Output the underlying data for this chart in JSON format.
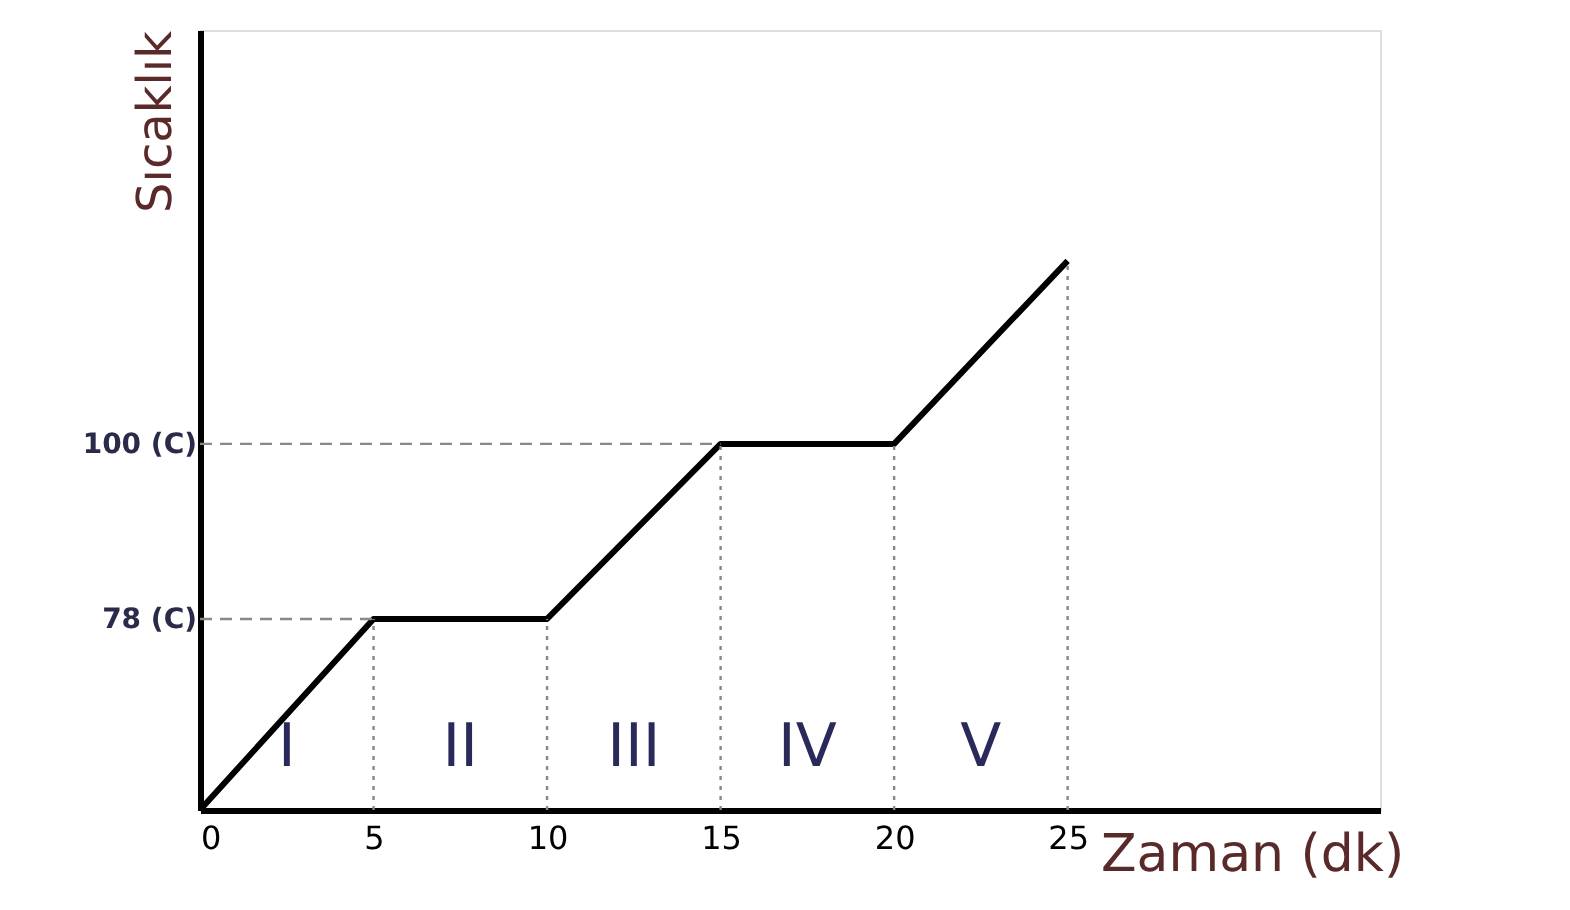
{
  "chart_data": {
    "type": "line",
    "xlabel": "Zaman (dk)",
    "ylabel": "Sıcaklık",
    "x": [
      0,
      5,
      10,
      15,
      20,
      25
    ],
    "series": [
      {
        "color": "#000000",
        "values": [
          54,
          78,
          78,
          100,
          100,
          123
        ]
      }
    ],
    "xlim": [
      0,
      34
    ],
    "ylim": [
      54,
      152
    ],
    "xticks": [
      0,
      5,
      10,
      15,
      20,
      25
    ],
    "yticks": [
      {
        "value": 78,
        "label": "78 (C)"
      },
      {
        "value": 100,
        "label": "100 (C)"
      }
    ],
    "ref_lines": [
      {
        "axis": "y",
        "value": 78,
        "line_style": "dashed",
        "color": "#888888"
      },
      {
        "axis": "y",
        "value": 100,
        "line_style": "dashed",
        "color": "#888888"
      },
      {
        "axis": "x",
        "value": 5,
        "line_style": "dotted",
        "color": "#888888"
      },
      {
        "axis": "x",
        "value": 10,
        "line_style": "dotted",
        "color": "#888888"
      },
      {
        "axis": "x",
        "value": 15,
        "line_style": "dotted",
        "color": "#888888"
      },
      {
        "axis": "x",
        "value": 20,
        "line_style": "dotted",
        "color": "#888888"
      },
      {
        "axis": "x",
        "value": 25,
        "line_style": "dotted",
        "color": "#888888"
      }
    ],
    "annotations": [
      "I",
      "II",
      "III",
      "IV",
      "V"
    ],
    "grid": false,
    "marker": "none",
    "line_style": "solid"
  }
}
